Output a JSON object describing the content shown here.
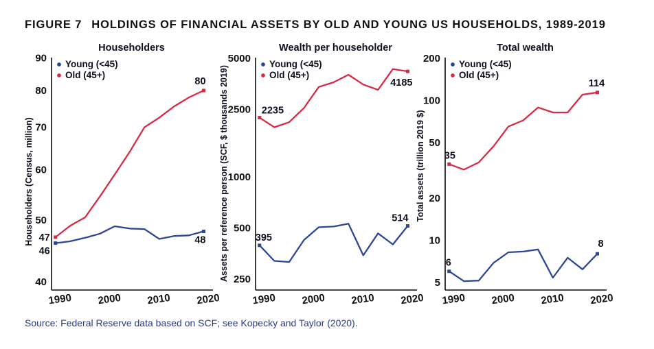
{
  "title": {
    "prefix": "FIGURE 7",
    "text": "HOLDINGS OF FINANCIAL ASSETS BY OLD AND YOUNG US HOUSEHOLDS, 1989-2019"
  },
  "source": "Source: Federal Reserve data based on SCF; see Kopecky and Taylor (2020).",
  "colors": {
    "young": "#2c4694",
    "old": "#d72a46",
    "axis": "#0b0b0b",
    "tick_text": "#111111",
    "label_text": "#0d0f1e",
    "source_text": "#2b3a8c",
    "background": "#ffffff"
  },
  "legend": {
    "entries": [
      {
        "label": "Young (<45)",
        "series": "young"
      },
      {
        "label": "Old (45+)",
        "series": "old"
      }
    ],
    "position": "top-left-inside"
  },
  "chart_data": [
    {
      "type": "line",
      "title": "Householders",
      "ylabel": "Householders (Census, million)",
      "yscale": "log",
      "grid": false,
      "yticks": [
        90,
        80,
        70,
        60,
        50,
        40
      ],
      "ydomain": [
        38.8,
        90.15
      ],
      "xticks": [
        1990,
        2000,
        2010,
        2020
      ],
      "xdomain": [
        1988.2,
        2020.6
      ],
      "x": [
        1989,
        1992,
        1995,
        1998,
        2001,
        2004,
        2007,
        2010,
        2013,
        2016,
        2019
      ],
      "series": [
        {
          "name": "Young (<45)",
          "key": "young",
          "values": [
            46,
            46.3,
            46.9,
            47.6,
            48.9,
            48.5,
            48.4,
            46.7,
            47.2,
            47.3,
            48
          ],
          "ann_first": {
            "label": "46",
            "anchor": "end",
            "dx": -8,
            "dy": 16
          },
          "ann_last": {
            "label": "48",
            "anchor": "end",
            "dx": 3,
            "dy": 17
          }
        },
        {
          "name": "Old (45+)",
          "key": "old",
          "values": [
            47,
            49,
            50.5,
            54.5,
            59,
            64,
            70,
            72.5,
            75.5,
            78,
            80
          ],
          "ann_first": {
            "label": "47",
            "anchor": "end",
            "dx": -8,
            "dy": 5
          },
          "ann_last": {
            "label": "80",
            "anchor": "middle",
            "dx": -5,
            "dy": -9
          }
        }
      ]
    },
    {
      "type": "line",
      "title": "Wealth per householder",
      "ylabel": "Assets per reference person (SCF, $ thousands 2019)",
      "yscale": "log",
      "grid": false,
      "yticks": [
        5000,
        2500,
        1000,
        500,
        250
      ],
      "ydomain": [
        215.4,
        5046
      ],
      "xticks": [
        1990,
        2000,
        2010,
        2020
      ],
      "xdomain": [
        1988.2,
        2020.6
      ],
      "x": [
        1989,
        1992,
        1995,
        1998,
        2001,
        2004,
        2007,
        2010,
        2013,
        2016,
        2019
      ],
      "series": [
        {
          "name": "Young (<45)",
          "key": "young",
          "values": [
            395,
            320,
            315,
            425,
            505,
            510,
            530,
            345,
            465,
            400,
            514
          ],
          "ann_first": {
            "label": "395",
            "anchor": "start",
            "dx": -6,
            "dy": -7
          },
          "ann_last": {
            "label": "514",
            "anchor": "end",
            "dx": 1,
            "dy": -7
          }
        },
        {
          "name": "Old (45+)",
          "key": "old",
          "values": [
            2235,
            1960,
            2100,
            2550,
            3390,
            3610,
            4000,
            3500,
            3260,
            4320,
            4185
          ],
          "ann_first": {
            "label": "2235",
            "anchor": "start",
            "dx": 3,
            "dy": -6
          },
          "ann_last": {
            "label": "4185",
            "anchor": "end",
            "dx": 7,
            "dy": 21
          }
        }
      ]
    },
    {
      "type": "line",
      "title": "Total wealth",
      "ylabel": "Total assets (trillion 2019 $)",
      "yscale": "log",
      "grid": false,
      "yticks": [
        200,
        100,
        50,
        20,
        10,
        5
      ],
      "ydomain": [
        4.407,
        202.3
      ],
      "xticks": [
        1990,
        2000,
        2010,
        2020
      ],
      "xdomain": [
        1988.2,
        2020.6
      ],
      "x": [
        1989,
        1992,
        1995,
        1998,
        2001,
        2004,
        2007,
        2010,
        2013,
        2016,
        2019
      ],
      "series": [
        {
          "name": "Young (<45)",
          "key": "young",
          "values": [
            6,
            5.1,
            5.15,
            6.9,
            8.2,
            8.3,
            8.6,
            5.4,
            7.5,
            6.2,
            8
          ],
          "ann_first": {
            "label": "6",
            "anchor": "middle",
            "dx": -1,
            "dy": -8
          },
          "ann_last": {
            "label": "8",
            "anchor": "middle",
            "dx": 5,
            "dy": -10
          }
        },
        {
          "name": "Old (45+)",
          "key": "old",
          "values": [
            35,
            32,
            36,
            47,
            65,
            72,
            89,
            82,
            82,
            110,
            114
          ],
          "ann_first": {
            "label": "35",
            "anchor": "start",
            "dx": -7,
            "dy": -8
          },
          "ann_last": {
            "label": "114",
            "anchor": "middle",
            "dx": -1,
            "dy": -9
          }
        }
      ]
    }
  ]
}
